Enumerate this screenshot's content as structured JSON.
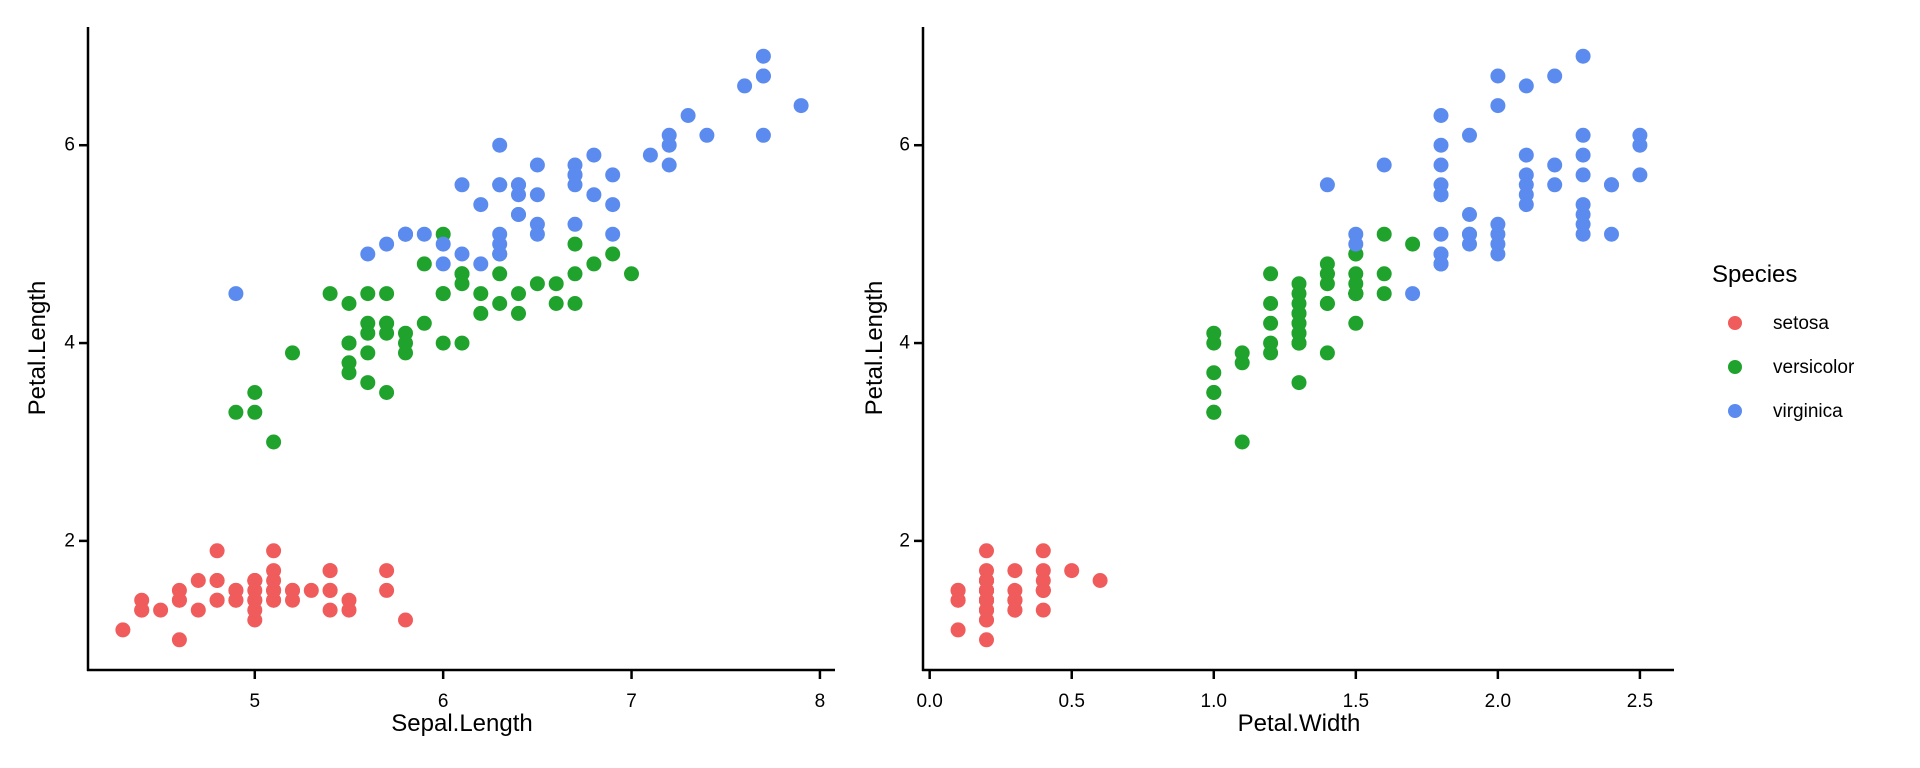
{
  "chart_data": {
    "type": "scatter",
    "title": "",
    "grid": "off",
    "theme": "classic-white-no-gridlines",
    "point_radius_px": 7.5,
    "legend": {
      "position": "right",
      "title": "Species",
      "items": [
        {
          "label": "setosa",
          "color": "#F05B5B"
        },
        {
          "label": "versicolor",
          "color": "#1FA32C"
        },
        {
          "label": "virginica",
          "color": "#5B8BEF"
        }
      ]
    },
    "panels": [
      {
        "xlabel": "Sepal.Length",
        "ylabel": "Petal.Length",
        "x_field": "Sepal.Length",
        "y_field": "Petal.Length",
        "xlim": [
          4.12,
          8.08
        ],
        "ylim": [
          0.705,
          7.195
        ],
        "xtick_values": [
          5,
          6,
          7,
          8
        ],
        "xtick_labels": [
          "5",
          "6",
          "7",
          "8"
        ],
        "ytick_values": [
          2,
          4,
          6
        ],
        "ytick_labels": [
          "2",
          "4",
          "6"
        ]
      },
      {
        "xlabel": "Petal.Width",
        "ylabel": "Petal.Length",
        "x_field": "Petal.Width",
        "y_field": "Petal.Length",
        "xlim": [
          -0.02,
          2.62
        ],
        "ylim": [
          0.705,
          7.195
        ],
        "xtick_values": [
          0.0,
          0.5,
          1.0,
          1.5,
          2.0,
          2.5
        ],
        "xtick_labels": [
          "0.0",
          "0.5",
          "1.0",
          "1.5",
          "2.0",
          "2.5"
        ],
        "ytick_values": [
          2,
          4,
          6
        ],
        "ytick_labels": [
          "2",
          "4",
          "6"
        ]
      }
    ],
    "dataset": {
      "columns": [
        "Sepal.Length",
        "Petal.Length",
        "Petal.Width",
        "Species"
      ],
      "rows": [
        [
          5.1,
          1.4,
          0.2,
          "setosa"
        ],
        [
          4.9,
          1.4,
          0.2,
          "setosa"
        ],
        [
          4.7,
          1.3,
          0.2,
          "setosa"
        ],
        [
          4.6,
          1.5,
          0.2,
          "setosa"
        ],
        [
          5.0,
          1.4,
          0.2,
          "setosa"
        ],
        [
          5.4,
          1.7,
          0.4,
          "setosa"
        ],
        [
          4.6,
          1.4,
          0.3,
          "setosa"
        ],
        [
          5.0,
          1.5,
          0.2,
          "setosa"
        ],
        [
          4.4,
          1.4,
          0.2,
          "setosa"
        ],
        [
          4.9,
          1.5,
          0.1,
          "setosa"
        ],
        [
          5.4,
          1.5,
          0.2,
          "setosa"
        ],
        [
          4.8,
          1.6,
          0.2,
          "setosa"
        ],
        [
          4.8,
          1.4,
          0.1,
          "setosa"
        ],
        [
          4.3,
          1.1,
          0.1,
          "setosa"
        ],
        [
          5.8,
          1.2,
          0.2,
          "setosa"
        ],
        [
          5.7,
          1.5,
          0.4,
          "setosa"
        ],
        [
          5.4,
          1.3,
          0.4,
          "setosa"
        ],
        [
          5.1,
          1.4,
          0.3,
          "setosa"
        ],
        [
          5.7,
          1.7,
          0.3,
          "setosa"
        ],
        [
          5.1,
          1.5,
          0.3,
          "setosa"
        ],
        [
          5.4,
          1.7,
          0.2,
          "setosa"
        ],
        [
          5.1,
          1.5,
          0.4,
          "setosa"
        ],
        [
          4.6,
          1.0,
          0.2,
          "setosa"
        ],
        [
          5.1,
          1.7,
          0.5,
          "setosa"
        ],
        [
          4.8,
          1.9,
          0.2,
          "setosa"
        ],
        [
          5.0,
          1.6,
          0.2,
          "setosa"
        ],
        [
          5.0,
          1.6,
          0.4,
          "setosa"
        ],
        [
          5.2,
          1.5,
          0.2,
          "setosa"
        ],
        [
          5.2,
          1.4,
          0.2,
          "setosa"
        ],
        [
          4.7,
          1.6,
          0.2,
          "setosa"
        ],
        [
          4.8,
          1.6,
          0.2,
          "setosa"
        ],
        [
          5.4,
          1.5,
          0.4,
          "setosa"
        ],
        [
          5.2,
          1.5,
          0.1,
          "setosa"
        ],
        [
          5.5,
          1.4,
          0.2,
          "setosa"
        ],
        [
          4.9,
          1.5,
          0.2,
          "setosa"
        ],
        [
          5.0,
          1.2,
          0.2,
          "setosa"
        ],
        [
          5.5,
          1.3,
          0.2,
          "setosa"
        ],
        [
          4.9,
          1.4,
          0.1,
          "setosa"
        ],
        [
          4.4,
          1.3,
          0.2,
          "setosa"
        ],
        [
          5.1,
          1.5,
          0.2,
          "setosa"
        ],
        [
          5.0,
          1.3,
          0.3,
          "setosa"
        ],
        [
          4.5,
          1.3,
          0.3,
          "setosa"
        ],
        [
          4.4,
          1.3,
          0.2,
          "setosa"
        ],
        [
          5.0,
          1.6,
          0.6,
          "setosa"
        ],
        [
          5.1,
          1.9,
          0.4,
          "setosa"
        ],
        [
          4.8,
          1.4,
          0.3,
          "setosa"
        ],
        [
          5.1,
          1.6,
          0.2,
          "setosa"
        ],
        [
          4.6,
          1.4,
          0.2,
          "setosa"
        ],
        [
          5.3,
          1.5,
          0.2,
          "setosa"
        ],
        [
          5.0,
          1.4,
          0.2,
          "setosa"
        ],
        [
          7.0,
          4.7,
          1.4,
          "versicolor"
        ],
        [
          6.4,
          4.5,
          1.5,
          "versicolor"
        ],
        [
          6.9,
          4.9,
          1.5,
          "versicolor"
        ],
        [
          5.5,
          4.0,
          1.3,
          "versicolor"
        ],
        [
          6.5,
          4.6,
          1.5,
          "versicolor"
        ],
        [
          5.7,
          4.5,
          1.3,
          "versicolor"
        ],
        [
          6.3,
          4.7,
          1.6,
          "versicolor"
        ],
        [
          4.9,
          3.3,
          1.0,
          "versicolor"
        ],
        [
          6.6,
          4.6,
          1.3,
          "versicolor"
        ],
        [
          5.2,
          3.9,
          1.4,
          "versicolor"
        ],
        [
          5.0,
          3.5,
          1.0,
          "versicolor"
        ],
        [
          5.9,
          4.2,
          1.5,
          "versicolor"
        ],
        [
          6.0,
          4.0,
          1.0,
          "versicolor"
        ],
        [
          6.1,
          4.7,
          1.4,
          "versicolor"
        ],
        [
          5.6,
          3.6,
          1.3,
          "versicolor"
        ],
        [
          6.7,
          4.4,
          1.4,
          "versicolor"
        ],
        [
          5.6,
          4.5,
          1.5,
          "versicolor"
        ],
        [
          5.8,
          4.1,
          1.0,
          "versicolor"
        ],
        [
          6.2,
          4.5,
          1.5,
          "versicolor"
        ],
        [
          5.6,
          3.9,
          1.1,
          "versicolor"
        ],
        [
          5.9,
          4.8,
          1.8,
          "versicolor"
        ],
        [
          6.1,
          4.0,
          1.3,
          "versicolor"
        ],
        [
          6.3,
          4.9,
          1.5,
          "versicolor"
        ],
        [
          6.1,
          4.7,
          1.2,
          "versicolor"
        ],
        [
          6.4,
          4.3,
          1.3,
          "versicolor"
        ],
        [
          6.6,
          4.4,
          1.4,
          "versicolor"
        ],
        [
          6.8,
          4.8,
          1.4,
          "versicolor"
        ],
        [
          6.7,
          5.0,
          1.7,
          "versicolor"
        ],
        [
          6.0,
          4.5,
          1.5,
          "versicolor"
        ],
        [
          5.7,
          3.5,
          1.0,
          "versicolor"
        ],
        [
          5.5,
          3.8,
          1.1,
          "versicolor"
        ],
        [
          5.5,
          3.7,
          1.0,
          "versicolor"
        ],
        [
          5.8,
          3.9,
          1.2,
          "versicolor"
        ],
        [
          6.0,
          5.1,
          1.6,
          "versicolor"
        ],
        [
          5.4,
          4.5,
          1.5,
          "versicolor"
        ],
        [
          6.0,
          4.5,
          1.6,
          "versicolor"
        ],
        [
          6.7,
          4.7,
          1.5,
          "versicolor"
        ],
        [
          6.3,
          4.4,
          1.3,
          "versicolor"
        ],
        [
          5.6,
          4.1,
          1.3,
          "versicolor"
        ],
        [
          5.5,
          4.0,
          1.3,
          "versicolor"
        ],
        [
          5.5,
          4.4,
          1.2,
          "versicolor"
        ],
        [
          6.1,
          4.6,
          1.4,
          "versicolor"
        ],
        [
          5.8,
          4.0,
          1.2,
          "versicolor"
        ],
        [
          5.0,
          3.3,
          1.0,
          "versicolor"
        ],
        [
          5.6,
          4.2,
          1.3,
          "versicolor"
        ],
        [
          5.7,
          4.2,
          1.2,
          "versicolor"
        ],
        [
          5.7,
          4.2,
          1.3,
          "versicolor"
        ],
        [
          6.2,
          4.3,
          1.3,
          "versicolor"
        ],
        [
          5.1,
          3.0,
          1.1,
          "versicolor"
        ],
        [
          5.7,
          4.1,
          1.3,
          "versicolor"
        ],
        [
          6.3,
          6.0,
          2.5,
          "virginica"
        ],
        [
          5.8,
          5.1,
          1.9,
          "virginica"
        ],
        [
          7.1,
          5.9,
          2.1,
          "virginica"
        ],
        [
          6.3,
          5.6,
          1.8,
          "virginica"
        ],
        [
          6.5,
          5.8,
          2.2,
          "virginica"
        ],
        [
          7.6,
          6.6,
          2.1,
          "virginica"
        ],
        [
          4.9,
          4.5,
          1.7,
          "virginica"
        ],
        [
          7.3,
          6.3,
          1.8,
          "virginica"
        ],
        [
          6.7,
          5.8,
          1.8,
          "virginica"
        ],
        [
          7.2,
          6.1,
          2.5,
          "virginica"
        ],
        [
          6.5,
          5.1,
          2.0,
          "virginica"
        ],
        [
          6.4,
          5.3,
          1.9,
          "virginica"
        ],
        [
          6.8,
          5.5,
          2.1,
          "virginica"
        ],
        [
          5.7,
          5.0,
          2.0,
          "virginica"
        ],
        [
          5.8,
          5.1,
          2.4,
          "virginica"
        ],
        [
          6.4,
          5.3,
          2.3,
          "virginica"
        ],
        [
          6.5,
          5.5,
          1.8,
          "virginica"
        ],
        [
          7.7,
          6.7,
          2.2,
          "virginica"
        ],
        [
          7.7,
          6.9,
          2.3,
          "virginica"
        ],
        [
          6.0,
          5.0,
          1.5,
          "virginica"
        ],
        [
          6.9,
          5.7,
          2.3,
          "virginica"
        ],
        [
          5.6,
          4.9,
          2.0,
          "virginica"
        ],
        [
          7.7,
          6.7,
          2.0,
          "virginica"
        ],
        [
          6.3,
          4.9,
          1.8,
          "virginica"
        ],
        [
          6.7,
          5.7,
          2.1,
          "virginica"
        ],
        [
          7.2,
          6.0,
          1.8,
          "virginica"
        ],
        [
          6.2,
          4.8,
          1.8,
          "virginica"
        ],
        [
          6.1,
          4.9,
          1.8,
          "virginica"
        ],
        [
          6.4,
          5.6,
          2.1,
          "virginica"
        ],
        [
          7.2,
          5.8,
          1.6,
          "virginica"
        ],
        [
          7.4,
          6.1,
          1.9,
          "virginica"
        ],
        [
          7.9,
          6.4,
          2.0,
          "virginica"
        ],
        [
          6.4,
          5.6,
          2.2,
          "virginica"
        ],
        [
          6.3,
          5.1,
          1.5,
          "virginica"
        ],
        [
          6.1,
          5.6,
          1.4,
          "virginica"
        ],
        [
          7.7,
          6.1,
          2.3,
          "virginica"
        ],
        [
          6.3,
          5.6,
          2.4,
          "virginica"
        ],
        [
          6.4,
          5.5,
          1.8,
          "virginica"
        ],
        [
          6.0,
          4.8,
          1.8,
          "virginica"
        ],
        [
          6.9,
          5.4,
          2.1,
          "virginica"
        ],
        [
          6.7,
          5.6,
          2.4,
          "virginica"
        ],
        [
          6.9,
          5.1,
          2.3,
          "virginica"
        ],
        [
          5.8,
          5.1,
          1.9,
          "virginica"
        ],
        [
          6.8,
          5.9,
          2.3,
          "virginica"
        ],
        [
          6.7,
          5.7,
          2.5,
          "virginica"
        ],
        [
          6.7,
          5.2,
          2.3,
          "virginica"
        ],
        [
          6.3,
          5.0,
          1.9,
          "virginica"
        ],
        [
          6.5,
          5.2,
          2.0,
          "virginica"
        ],
        [
          6.2,
          5.4,
          2.3,
          "virginica"
        ],
        [
          5.9,
          5.1,
          1.8,
          "virginica"
        ]
      ]
    }
  }
}
